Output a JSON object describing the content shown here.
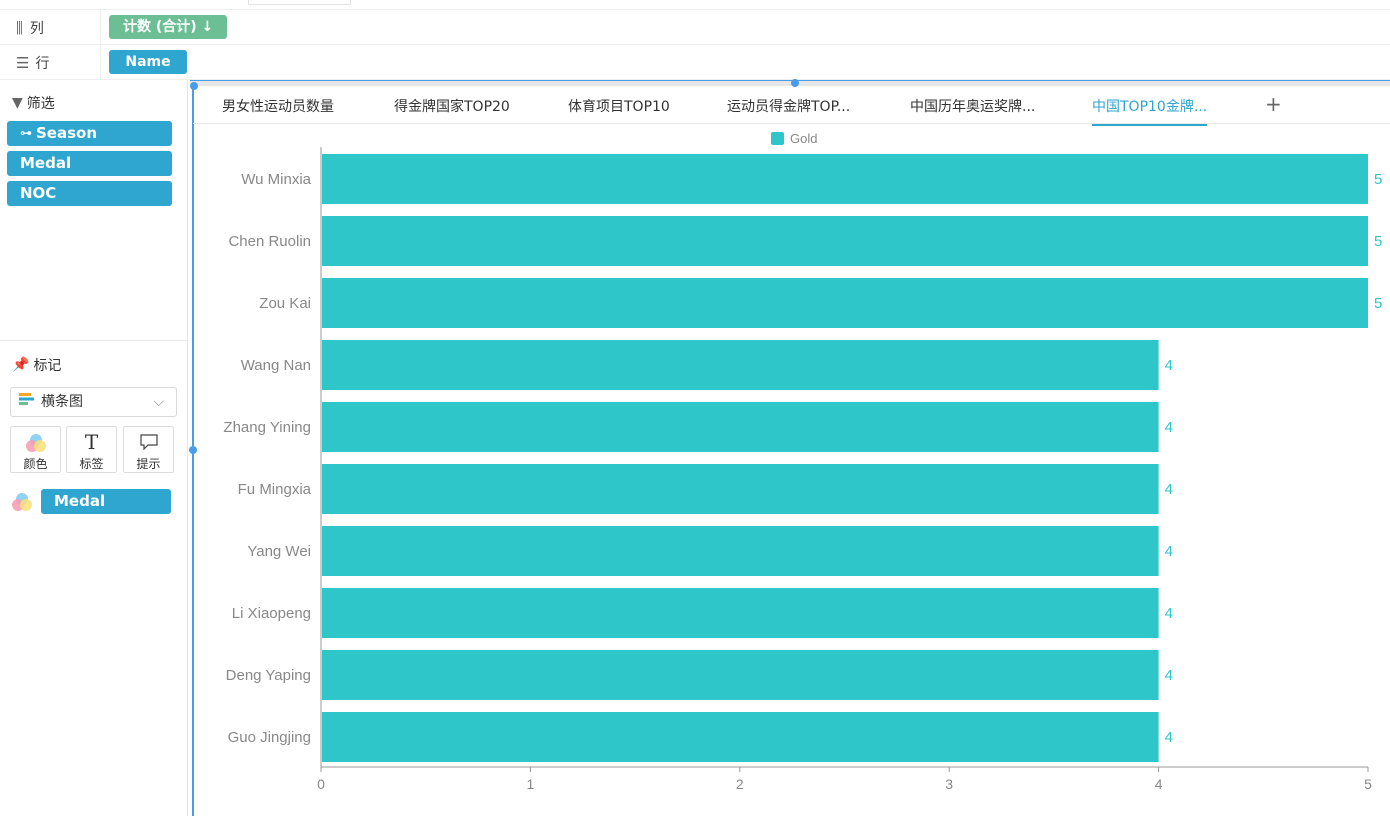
{
  "columns_shelf": {
    "label": "列",
    "pill": "计数 (合计) ↓"
  },
  "rows_shelf": {
    "label": "行",
    "pill": "Name"
  },
  "filters": {
    "title": "筛选",
    "items": [
      "Season",
      "Medal",
      "NOC"
    ]
  },
  "marks": {
    "title": "标记",
    "chart_type": "横条图",
    "buttons": {
      "color": "颜色",
      "label": "标签",
      "tooltip": "提示"
    },
    "color_field": "Medal"
  },
  "tabs": [
    {
      "label": "男女性运动员数量",
      "active": false
    },
    {
      "label": "得金牌国家TOP20",
      "active": false
    },
    {
      "label": "体育项目TOP10",
      "active": false
    },
    {
      "label": "运动员得金牌TOP...",
      "active": false
    },
    {
      "label": "中国历年奥运奖牌...",
      "active": false
    },
    {
      "label": "中国TOP10金牌...",
      "active": true
    }
  ],
  "add_tab": "+",
  "chart_data": {
    "type": "bar",
    "orientation": "horizontal",
    "categories": [
      "Wu Minxia",
      "Chen Ruolin",
      "Zou Kai",
      "Wang Nan",
      "Zhang Yining",
      "Fu Mingxia",
      "Yang Wei",
      "Li Xiaopeng",
      "Deng Yaping",
      "Guo Jingjing"
    ],
    "series": [
      {
        "name": "Gold",
        "color": "#2ec6c8",
        "values": [
          5,
          5,
          5,
          4,
          4,
          4,
          4,
          4,
          4,
          4
        ]
      }
    ],
    "xlim": [
      0,
      5
    ],
    "xticks": [
      "0",
      "1",
      "2",
      "3",
      "4",
      "5"
    ],
    "legend": "top-center",
    "data_labels": true
  }
}
